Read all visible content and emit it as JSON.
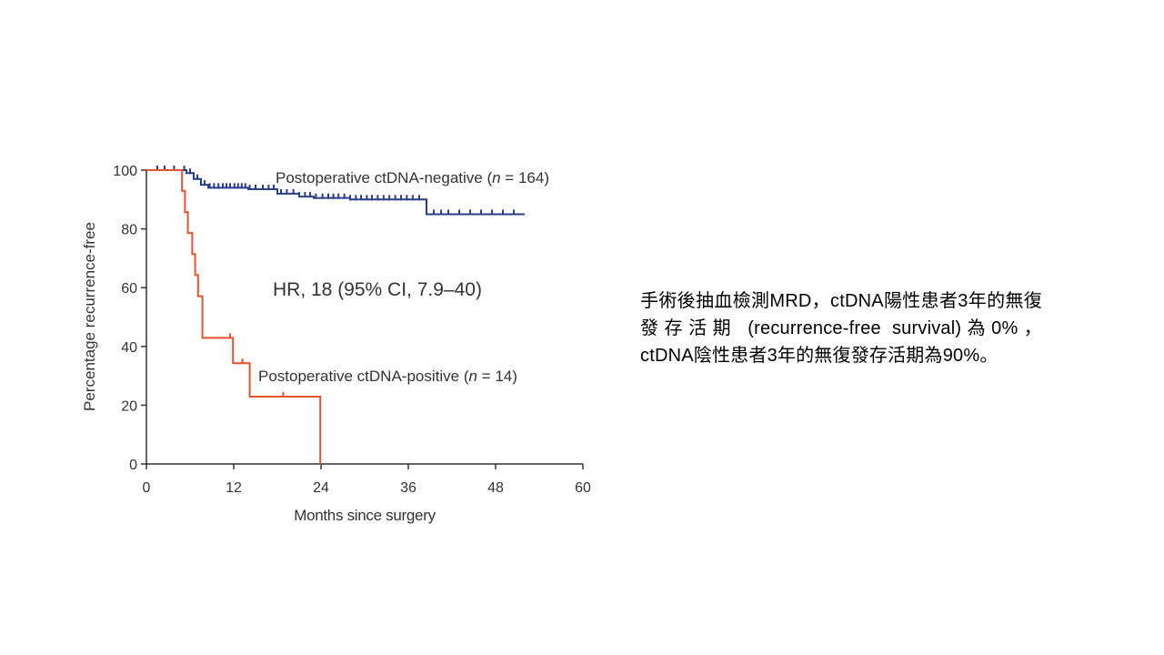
{
  "chart_data": {
    "type": "line",
    "subtype": "kaplan-meier",
    "title": "",
    "xlabel": "Months since surgery",
    "ylabel": "Percentage recurrence-free",
    "xlim": [
      0,
      60
    ],
    "ylim": [
      0,
      100
    ],
    "xticks": [
      0,
      12,
      24,
      36,
      48,
      60
    ],
    "yticks": [
      0,
      20,
      40,
      60,
      80,
      100
    ],
    "grid": false,
    "legend": "inline",
    "annotation": "HR, 18 (95% CI, 7.9–40)",
    "series": [
      {
        "name_parts": [
          "Postoperative ctDNA-negative (",
          "n",
          " = 164)"
        ],
        "color": "#2b3e8c",
        "steps": [
          [
            0,
            100
          ],
          [
            5.5,
            99
          ],
          [
            6.5,
            97
          ],
          [
            7.5,
            95
          ],
          [
            8.5,
            94
          ],
          [
            14,
            93.5
          ],
          [
            18,
            92
          ],
          [
            21,
            91
          ],
          [
            23,
            90.5
          ],
          [
            28,
            90
          ],
          [
            38.5,
            85
          ],
          [
            52,
            85
          ]
        ],
        "censor_x": [
          1.5,
          2.5,
          3.8,
          5.2,
          6,
          7,
          8,
          8.7,
          9.3,
          9.9,
          10.5,
          11,
          11.5,
          12.1,
          12.6,
          13.1,
          13.6,
          14.2,
          15,
          16,
          16.8,
          17.5,
          18.5,
          19.3,
          20.2,
          21,
          21.8,
          22.5,
          23.3,
          24.2,
          25,
          25.7,
          26.4,
          27.2,
          28,
          28.8,
          29.5,
          30.3,
          31,
          31.8,
          32.6,
          33.4,
          34.2,
          35,
          35.8,
          36.6,
          37.5,
          39.5,
          40.5,
          41.5,
          43,
          44.5,
          46,
          47.5,
          49,
          50.5
        ]
      },
      {
        "name_parts": [
          "Postoperative ctDNA-positive (",
          "n",
          " = 14)"
        ],
        "color": "#e8532f",
        "steps": [
          [
            0,
            100
          ],
          [
            4.5,
            100
          ],
          [
            4.9,
            92.9
          ],
          [
            5.3,
            85.7
          ],
          [
            5.7,
            78.6
          ],
          [
            6.3,
            71.4
          ],
          [
            6.7,
            64.3
          ],
          [
            7.1,
            57.1
          ],
          [
            7.7,
            42.9
          ],
          [
            11.9,
            34.3
          ],
          [
            14.2,
            22.9
          ],
          [
            23.9,
            0
          ],
          [
            24,
            0
          ]
        ],
        "censor_x": [
          11.5,
          13.2,
          18.8
        ]
      }
    ]
  },
  "caption": {
    "text": "手術後抽血檢測MRD，ctDNA陽性患者3年的無復發存活期 (recurrence-free survival)為0%，ctDNA陰性患者3年的無復發存活期為90%。"
  }
}
